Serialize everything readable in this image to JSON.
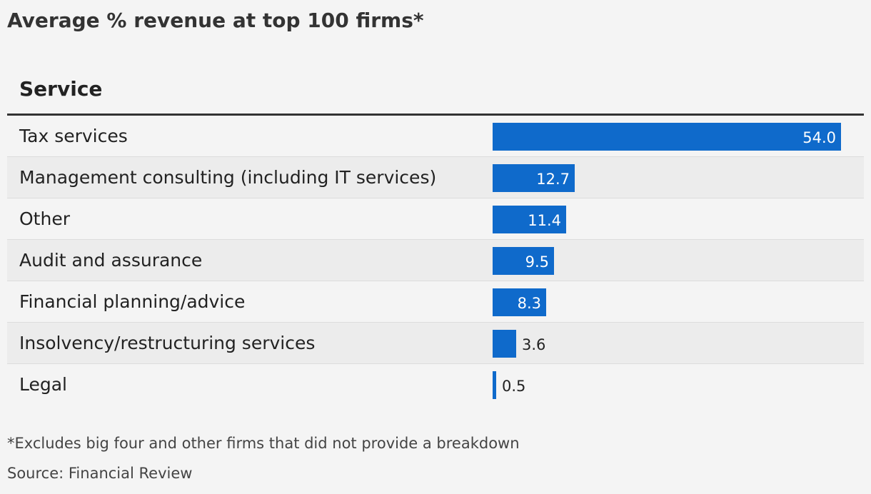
{
  "title": "Average % revenue at top 100 firms*",
  "column_header": "Service",
  "chart_data": {
    "type": "bar",
    "orientation": "horizontal",
    "categories": [
      "Tax services",
      "Management consulting (including IT services)",
      "Other",
      "Audit and assurance",
      "Financial planning/advice",
      "Insolvency/restructuring services",
      "Legal"
    ],
    "values": [
      54.0,
      12.7,
      11.4,
      9.5,
      8.3,
      3.6,
      0.5
    ],
    "value_labels": [
      "54.0",
      "12.7",
      "11.4",
      "9.5",
      "8.3",
      "3.6",
      "0.5"
    ],
    "bar_color": "#0f6acb",
    "title": "Average % revenue at top 100 firms*",
    "xlabel": "",
    "ylabel": "Service",
    "xlim": [
      0,
      54.0
    ],
    "grid": false,
    "legend": "none"
  },
  "footnote": "*Excludes big four and other firms that did not provide a breakdown",
  "source": "Source: Financial Review"
}
